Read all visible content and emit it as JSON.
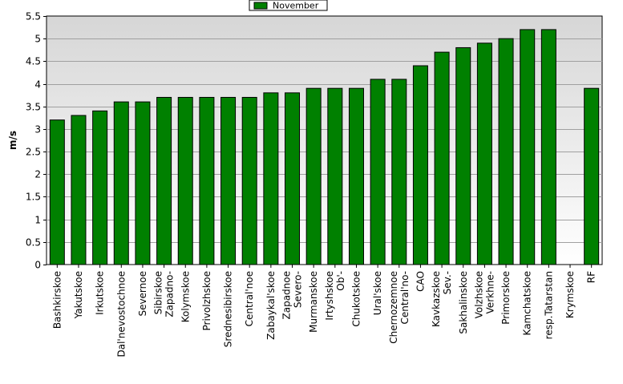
{
  "chart_data": {
    "type": "bar",
    "title": "",
    "xlabel": "",
    "ylabel": "m/s",
    "ylim": [
      0,
      5.5
    ],
    "yticks": [
      0,
      0.5,
      1,
      1.5,
      2,
      2.5,
      3,
      3.5,
      4,
      4.5,
      5,
      5.5
    ],
    "grid": true,
    "legend_position": "top-center",
    "categories": [
      "Bashkirskoe",
      "Yakutskoe",
      "Irkutskoe",
      "Dal'nevostochnoe",
      "Severnoe",
      "Zapadno-Sibirskoe",
      "Kolymskoe",
      "Privolzhskoe",
      "Srednesibirskoe",
      "Central'noe",
      "Zabaykal'skoe",
      "Severo-Zapadnoe",
      "Murmanskoe",
      "Ob'-Irtyshskoe",
      "Chukotskoe",
      "Ural'skoe",
      "Central'no-Chernozemnoe",
      "CAO",
      "Sev.-Kavkazskoe",
      "Sakhalinskoe",
      "Verkhne-Volzhskoe",
      "Primorskoe",
      "Kamchatskoe",
      "resp.Tatarstan",
      "Krymskoe",
      "RF"
    ],
    "category_lines": [
      [
        "Bashkirskoe"
      ],
      [
        "Yakutskoe"
      ],
      [
        "Irkutskoe"
      ],
      [
        "Dal'nevostochnoe"
      ],
      [
        "Severnoe"
      ],
      [
        "Zapadno-",
        "Sibirskoe"
      ],
      [
        "Kolymskoe"
      ],
      [
        "Privolzhskoe"
      ],
      [
        "Srednesibirskoe"
      ],
      [
        "Central'noe"
      ],
      [
        "Zabaykal'skoe"
      ],
      [
        "Severo-",
        "Zapadnoe"
      ],
      [
        "Murmanskoe"
      ],
      [
        "Ob'-",
        "Irtyshskoe"
      ],
      [
        "Chukotskoe"
      ],
      [
        "Ural'skoe"
      ],
      [
        "Central'no-",
        "Chernozemnoe"
      ],
      [
        "CAO"
      ],
      [
        "Sev.-",
        "Kavkazskoe"
      ],
      [
        "Sakhalinskoe"
      ],
      [
        "Verkhne-",
        "Volzhskoe"
      ],
      [
        "Primorskoe"
      ],
      [
        "Kamchatskoe"
      ],
      [
        "resp.Tatarstan"
      ],
      [
        "Krymskoe"
      ],
      [
        "RF"
      ]
    ],
    "series": [
      {
        "name": "November",
        "color": "#008000",
        "values": [
          3.2,
          3.3,
          3.4,
          3.6,
          3.6,
          3.7,
          3.7,
          3.7,
          3.7,
          3.7,
          3.8,
          3.8,
          3.9,
          3.9,
          3.9,
          4.1,
          4.1,
          4.4,
          4.7,
          4.8,
          4.9,
          5.0,
          5.2,
          5.2,
          null,
          3.9
        ]
      }
    ],
    "colors": {
      "bar": "#008000",
      "plot_background_top": "#d6d6d6",
      "plot_background_bottom": "#ffffff",
      "grid": "#a0a0a0"
    }
  }
}
